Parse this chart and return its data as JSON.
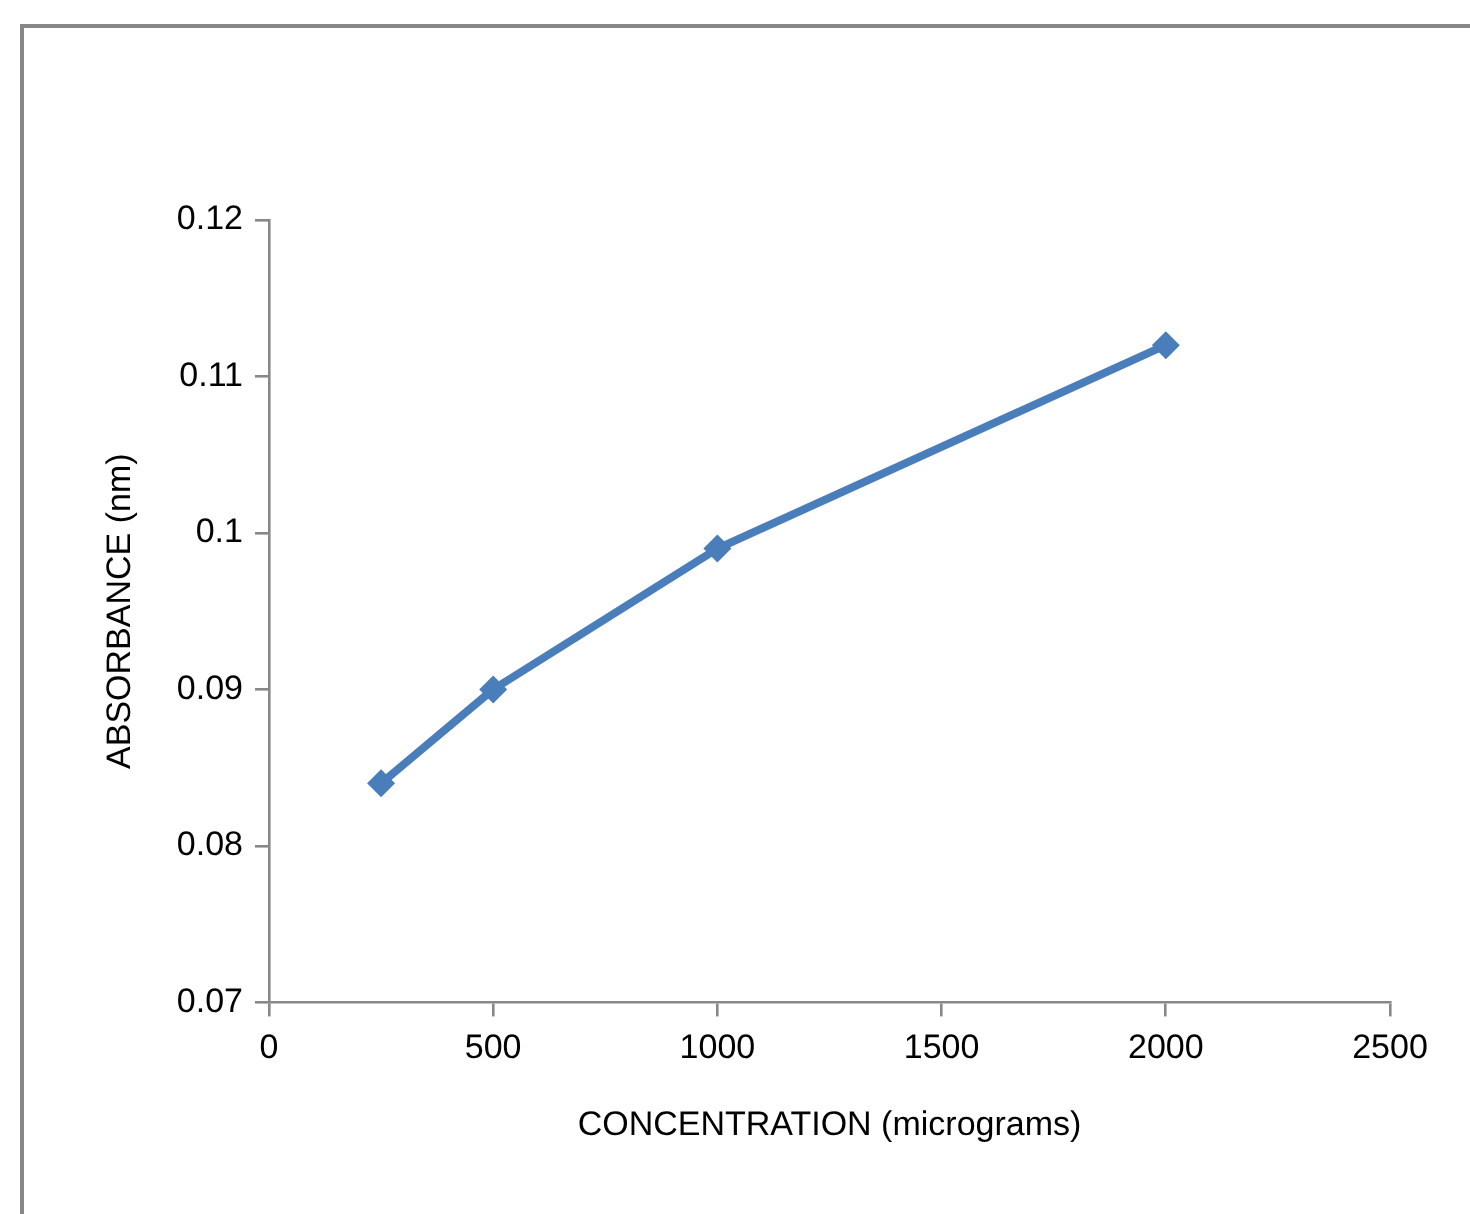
{
  "chart_data": {
    "type": "line",
    "xlabel": "CONCENTRATION (micrograms)",
    "ylabel": "ABSORBANCE (nm)",
    "x": [
      250,
      500,
      1000,
      2000
    ],
    "series": [
      {
        "color": "#4a7ebb",
        "values": [
          0.084,
          0.09,
          0.099,
          0.112
        ]
      }
    ],
    "xlim": [
      0,
      2500
    ],
    "xticks": [
      0,
      500,
      1000,
      1500,
      2000,
      2500
    ],
    "ylim": [
      0.07,
      0.12
    ],
    "yticks": [
      0.07,
      0.08,
      0.09,
      0.1,
      0.11,
      0.12
    ],
    "grid": false,
    "legend": false,
    "marker": "diamond",
    "line_style": "solid"
  }
}
